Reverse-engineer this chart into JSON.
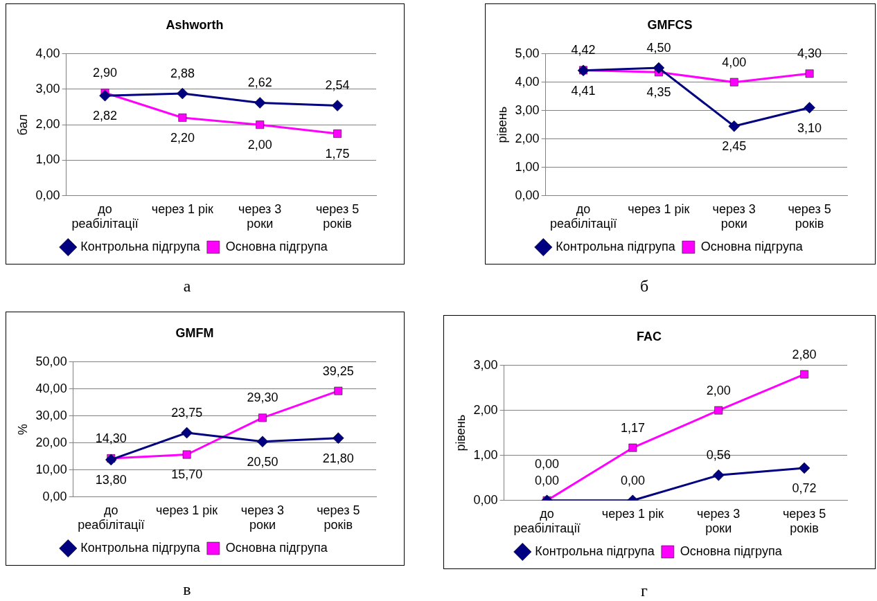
{
  "chart_data": [
    {
      "type": "line",
      "title": "Ashworth",
      "ylabel": "бал",
      "categories": [
        "до реабілітації",
        "через 1 рік",
        "через 3 роки",
        "через 5 років"
      ],
      "series": [
        {
          "name": "Контрольна підгрупа",
          "color": "#000080",
          "marker": "diamond",
          "values": [
            2.82,
            2.88,
            2.62,
            2.54
          ],
          "value_labels": [
            "2,82",
            "2,88",
            "2,62",
            "2,54"
          ]
        },
        {
          "name": "Основна підгрупа",
          "color": "#ff00ff",
          "marker": "square",
          "values": [
            2.9,
            2.2,
            2.0,
            1.75
          ],
          "value_labels": [
            "2,90",
            "2,20",
            "2,00",
            "1,75"
          ]
        }
      ],
      "ylim": [
        0,
        4
      ],
      "yticks": [
        {
          "value": 0,
          "label": "0,00"
        },
        {
          "value": 1,
          "label": "1,00"
        },
        {
          "value": 2,
          "label": "2,00"
        },
        {
          "value": 3,
          "label": "3,00"
        },
        {
          "value": 4,
          "label": "4,00"
        }
      ],
      "grid": "y",
      "legend": "bottom",
      "annotations": [
        "а"
      ]
    },
    {
      "type": "line",
      "title": "GMFCS",
      "ylabel": "рівень",
      "categories": [
        "до реабілітації",
        "через 1 рік",
        "через 3 роки",
        "через 5 років"
      ],
      "series": [
        {
          "name": "Контрольна підгрупа",
          "color": "#000080",
          "marker": "diamond",
          "values": [
            4.41,
            4.5,
            2.45,
            3.1
          ],
          "value_labels": [
            "4,41",
            "4,50",
            "2,45",
            "3,10"
          ]
        },
        {
          "name": "Основна підгрупа",
          "color": "#ff00ff",
          "marker": "square",
          "values": [
            4.42,
            4.35,
            4.0,
            4.3
          ],
          "value_labels": [
            "4,42",
            "4,35",
            "4,00",
            "4,30"
          ]
        }
      ],
      "ylim": [
        0,
        5
      ],
      "yticks": [
        {
          "value": 0,
          "label": "0,00"
        },
        {
          "value": 1,
          "label": "1,00"
        },
        {
          "value": 2,
          "label": "2,00"
        },
        {
          "value": 3,
          "label": "3,00"
        },
        {
          "value": 4,
          "label": "4,00"
        },
        {
          "value": 5,
          "label": "5,00"
        }
      ],
      "grid": "y",
      "legend": "bottom",
      "annotations": [
        "б"
      ]
    },
    {
      "type": "line",
      "title": "GMFM",
      "ylabel": "%",
      "categories": [
        "до реабілітації",
        "через 1 рік",
        "через 3 роки",
        "через 5 років"
      ],
      "series": [
        {
          "name": "Контрольна підгрупа",
          "color": "#000080",
          "marker": "diamond",
          "values": [
            13.8,
            23.75,
            20.5,
            21.8
          ],
          "value_labels": [
            "13,80",
            "23,75",
            "20,50",
            "21,80"
          ]
        },
        {
          "name": "Основна підгрупа",
          "color": "#ff00ff",
          "marker": "square",
          "values": [
            14.3,
            15.7,
            29.3,
            39.25
          ],
          "value_labels": [
            "14,30",
            "15,70",
            "29,30",
            "39,25"
          ]
        }
      ],
      "ylim": [
        0,
        50
      ],
      "yticks": [
        {
          "value": 0,
          "label": "0,00"
        },
        {
          "value": 10,
          "label": "10,00"
        },
        {
          "value": 20,
          "label": "20,00"
        },
        {
          "value": 30,
          "label": "30,00"
        },
        {
          "value": 40,
          "label": "40,00"
        },
        {
          "value": 50,
          "label": "50,00"
        }
      ],
      "grid": "y",
      "legend": "bottom",
      "annotations": [
        "в"
      ]
    },
    {
      "type": "line",
      "title": "FAC",
      "ylabel": "рівень",
      "categories": [
        "до реабілітації",
        "через 1 рік",
        "через 3 роки",
        "через 5 років"
      ],
      "series": [
        {
          "name": "Контрольна підгрупа",
          "color": "#000080",
          "marker": "diamond",
          "values": [
            0.0,
            0.0,
            0.56,
            0.72
          ],
          "value_labels": [
            "0,00",
            "0,00",
            "0,56",
            "0,72"
          ]
        },
        {
          "name": "Основна підгрупа",
          "color": "#ff00ff",
          "marker": "square",
          "values": [
            0.0,
            1.17,
            2.0,
            2.8
          ],
          "value_labels": [
            "0,00",
            "1,17",
            "2,00",
            "2,80"
          ]
        }
      ],
      "ylim": [
        0,
        3
      ],
      "yticks": [
        {
          "value": 0,
          "label": "0,00"
        },
        {
          "value": 1,
          "label": "1,00"
        },
        {
          "value": 2,
          "label": "2,00"
        },
        {
          "value": 3,
          "label": "3,00"
        }
      ],
      "grid": "y",
      "legend": "bottom",
      "annotations": [
        "г"
      ]
    }
  ]
}
